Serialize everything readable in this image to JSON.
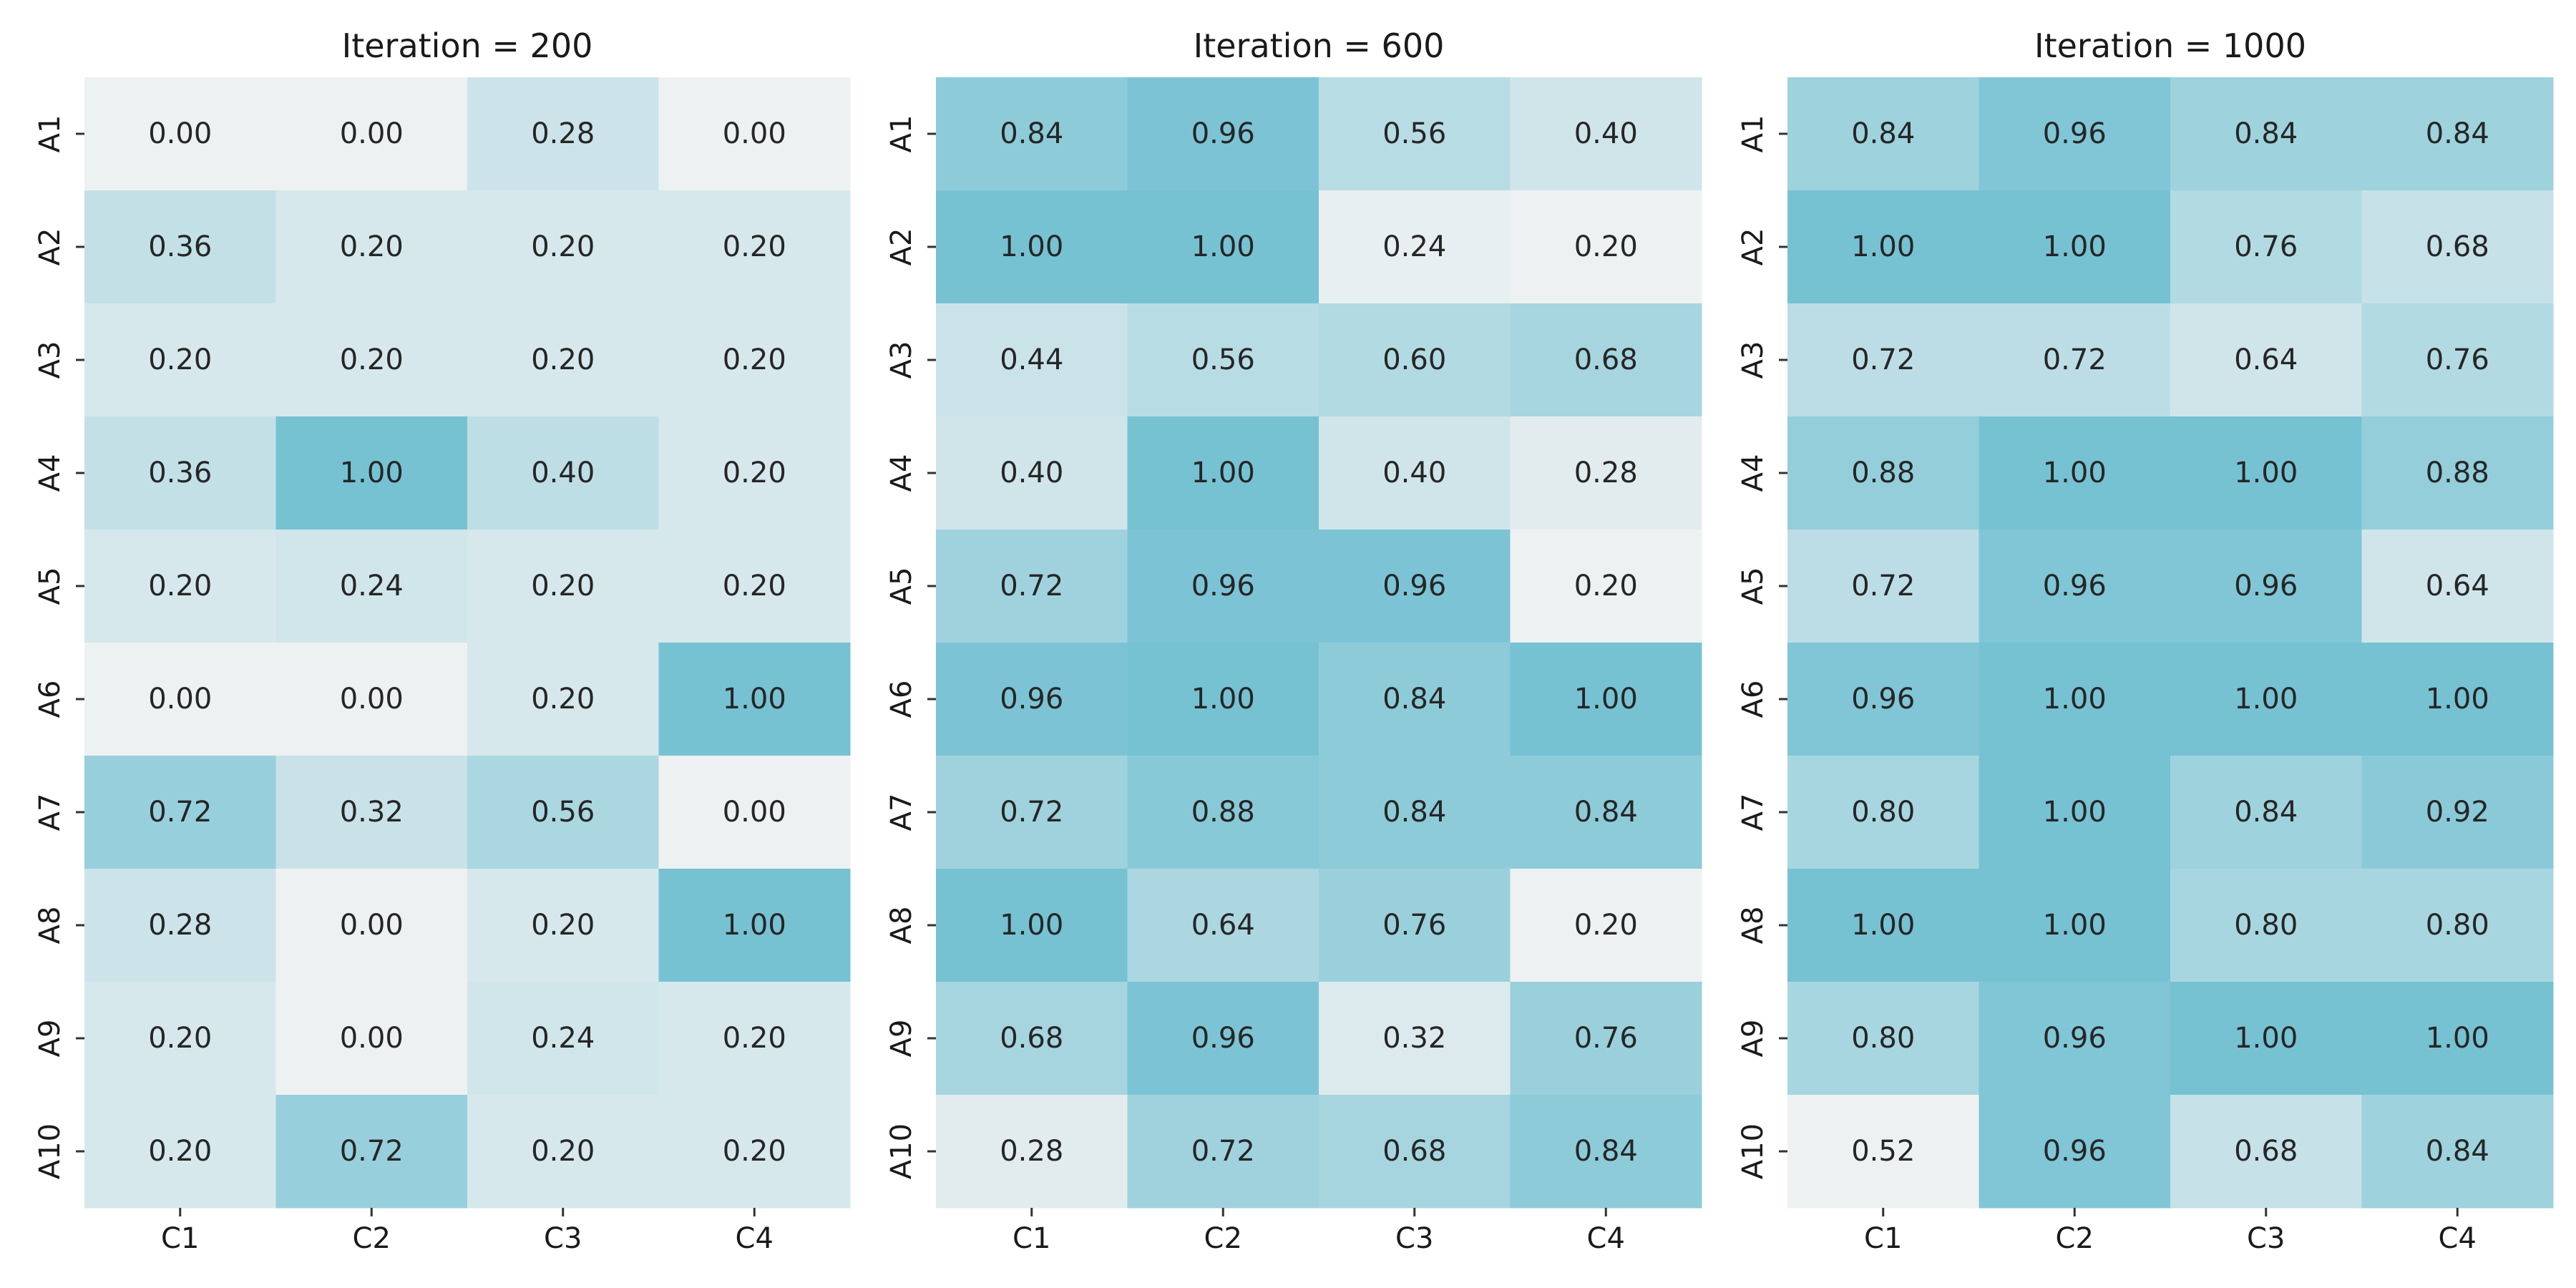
{
  "chart_data": [
    {
      "type": "heatmap",
      "title": "Iteration = 200",
      "rows": [
        "A1",
        "A2",
        "A3",
        "A4",
        "A5",
        "A6",
        "A7",
        "A8",
        "A9",
        "A10"
      ],
      "columns": [
        "C1",
        "C2",
        "C3",
        "C4"
      ],
      "values": [
        [
          0.0,
          0.0,
          0.28,
          0.0
        ],
        [
          0.36,
          0.2,
          0.2,
          0.2
        ],
        [
          0.2,
          0.2,
          0.2,
          0.2
        ],
        [
          0.36,
          1.0,
          0.4,
          0.2
        ],
        [
          0.2,
          0.24,
          0.2,
          0.2
        ],
        [
          0.0,
          0.0,
          0.2,
          1.0
        ],
        [
          0.72,
          0.32,
          0.56,
          0.0
        ],
        [
          0.28,
          0.0,
          0.2,
          1.0
        ],
        [
          0.2,
          0.0,
          0.24,
          0.2
        ],
        [
          0.2,
          0.72,
          0.2,
          0.2
        ]
      ],
      "value_range": [
        0,
        1
      ],
      "colormap": {
        "low": "#eef1f2",
        "high": "#76c2d3"
      }
    },
    {
      "type": "heatmap",
      "title": "Iteration = 600",
      "rows": [
        "A1",
        "A2",
        "A3",
        "A4",
        "A5",
        "A6",
        "A7",
        "A8",
        "A9",
        "A10"
      ],
      "columns": [
        "C1",
        "C2",
        "C3",
        "C4"
      ],
      "values": [
        [
          0.84,
          0.96,
          0.56,
          0.4
        ],
        [
          1.0,
          1.0,
          0.24,
          0.2
        ],
        [
          0.44,
          0.56,
          0.6,
          0.68
        ],
        [
          0.4,
          1.0,
          0.4,
          0.28
        ],
        [
          0.72,
          0.96,
          0.96,
          0.2
        ],
        [
          0.96,
          1.0,
          0.84,
          1.0
        ],
        [
          0.72,
          0.88,
          0.84,
          0.84
        ],
        [
          1.0,
          0.64,
          0.76,
          0.2
        ],
        [
          0.68,
          0.96,
          0.32,
          0.76
        ],
        [
          0.28,
          0.72,
          0.68,
          0.84
        ]
      ],
      "value_range": [
        0.2,
        1
      ],
      "colormap": {
        "low": "#eef1f2",
        "high": "#76c2d3"
      }
    },
    {
      "type": "heatmap",
      "title": "Iteration = 1000",
      "rows": [
        "A1",
        "A2",
        "A3",
        "A4",
        "A5",
        "A6",
        "A7",
        "A8",
        "A9",
        "A10"
      ],
      "columns": [
        "C1",
        "C2",
        "C3",
        "C4"
      ],
      "values": [
        [
          0.84,
          0.96,
          0.84,
          0.84
        ],
        [
          1.0,
          1.0,
          0.76,
          0.68
        ],
        [
          0.72,
          0.72,
          0.64,
          0.76
        ],
        [
          0.88,
          1.0,
          1.0,
          0.88
        ],
        [
          0.72,
          0.96,
          0.96,
          0.64
        ],
        [
          0.96,
          1.0,
          1.0,
          1.0
        ],
        [
          0.8,
          1.0,
          0.84,
          0.92
        ],
        [
          1.0,
          1.0,
          0.8,
          0.8
        ],
        [
          0.8,
          0.96,
          1.0,
          1.0
        ],
        [
          0.52,
          0.96,
          0.68,
          0.84
        ]
      ],
      "value_range": [
        0.52,
        1
      ],
      "colormap": {
        "low": "#eef1f2",
        "high": "#76c2d3"
      }
    }
  ]
}
